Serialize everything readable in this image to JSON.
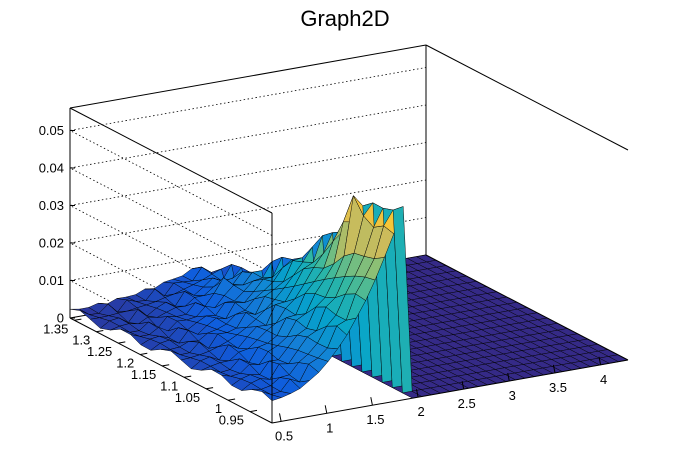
{
  "chart_data": {
    "type": "surface",
    "title": "Graph2D",
    "xlabel": "",
    "ylabel": "",
    "zlabel": "",
    "xlim": [
      0.4,
      4.3
    ],
    "ylim": [
      0.9,
      1.36
    ],
    "zlim": [
      0,
      0.056
    ],
    "x_ticks": [
      "0.5",
      "1",
      "1.5",
      "2",
      "2.5",
      "3",
      "3.5",
      "4"
    ],
    "y_ticks": [
      "0.95",
      "1",
      "1.05",
      "1.1",
      "1.15",
      "1.2",
      "1.25",
      "1.3",
      "1.35"
    ],
    "z_ticks": [
      "0",
      "0.01",
      "0.02",
      "0.03",
      "0.04",
      "0.05"
    ],
    "grid": true,
    "colormap": [
      "#352a87",
      "#0f5cdd",
      "#1481d6",
      "#06a4ca",
      "#2eb7a4",
      "#87bf77",
      "#d1bb59",
      "#fec832",
      "#f9fb0e"
    ],
    "surface_peak": {
      "x": 1.75,
      "y": 0.98,
      "z": 0.055
    },
    "surface_ridge": {
      "x_edge": 1.8,
      "z_at_low_y": 0.04,
      "z_at_high_y": 0.003
    },
    "surface_nonzero_region": {
      "x_min": 0.4,
      "x_max": 1.85
    }
  }
}
